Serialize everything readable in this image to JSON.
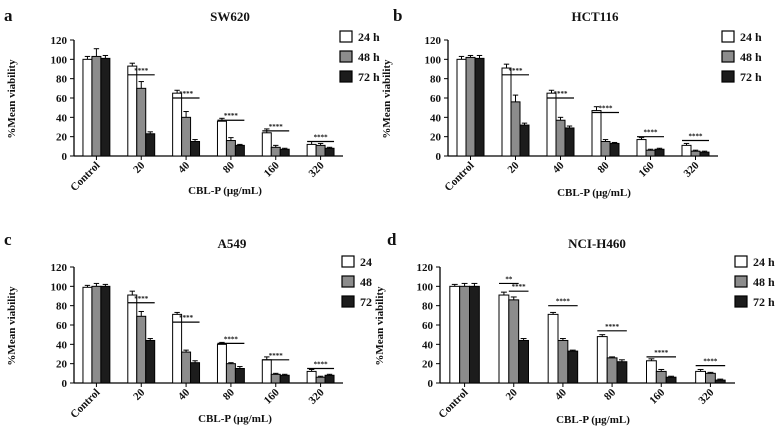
{
  "figure": {
    "style": {
      "bar_colors": [
        "#ffffff",
        "#8c8c8c",
        "#1c1c1c"
      ],
      "stroke": "#000000"
    }
  },
  "chart_data": [
    {
      "panel": "a",
      "type": "bar",
      "title": "SW620",
      "xlabel": "CBL-P (μg/mL)",
      "ylabel": "%Mean viability",
      "ylim": [
        0,
        120
      ],
      "yticks": [
        0,
        20,
        40,
        60,
        80,
        100,
        120
      ],
      "categories": [
        "Control",
        "20",
        "40",
        "80",
        "160",
        "320"
      ],
      "series": [
        {
          "name": "24 h",
          "values": [
            100,
            93,
            65,
            36,
            24,
            12
          ],
          "errors": [
            3,
            3,
            3,
            3,
            4,
            3
          ]
        },
        {
          "name": "48 h",
          "values": [
            103,
            70,
            40,
            16,
            9,
            11
          ],
          "errors": [
            8,
            7,
            6,
            3,
            2,
            2
          ]
        },
        {
          "name": "72 h",
          "values": [
            101,
            23,
            15,
            11,
            7,
            8
          ],
          "errors": [
            3,
            2,
            2,
            1,
            1,
            1
          ]
        }
      ],
      "significance": [
        {
          "category": "20",
          "label": "****",
          "y": 84
        },
        {
          "category": "40",
          "label": "****",
          "y": 60
        },
        {
          "category": "80",
          "label": "****",
          "y": 37
        },
        {
          "category": "160",
          "label": "****",
          "y": 26
        },
        {
          "category": "320",
          "label": "****",
          "y": 15
        }
      ]
    },
    {
      "panel": "b",
      "type": "bar",
      "title": "HCT116",
      "xlabel": "CBL-P (μg/mL)",
      "ylabel": "%Mean viability",
      "ylim": [
        0,
        120
      ],
      "yticks": [
        0,
        20,
        40,
        60,
        80,
        100,
        120
      ],
      "categories": [
        "Control",
        "20",
        "40",
        "80",
        "160",
        "320"
      ],
      "series": [
        {
          "name": "24 h",
          "values": [
            100,
            91,
            65,
            47,
            17,
            11
          ],
          "errors": [
            3,
            4,
            3,
            4,
            2,
            2
          ]
        },
        {
          "name": "48 h",
          "values": [
            102,
            56,
            37,
            15,
            6,
            5
          ],
          "errors": [
            2,
            7,
            3,
            2,
            1,
            1
          ]
        },
        {
          "name": "72 h",
          "values": [
            101,
            32,
            29,
            13,
            7,
            4
          ],
          "errors": [
            3,
            2,
            2,
            1,
            1,
            1
          ]
        }
      ],
      "significance": [
        {
          "category": "20",
          "label": "****",
          "y": 84
        },
        {
          "category": "40",
          "label": "****",
          "y": 60
        },
        {
          "category": "80",
          "label": "****",
          "y": 45
        },
        {
          "category": "160",
          "label": "****",
          "y": 20
        },
        {
          "category": "320",
          "label": "****",
          "y": 16
        }
      ]
    },
    {
      "panel": "c",
      "type": "bar",
      "title": "A549",
      "xlabel": "CBL-P (μg/mL)",
      "ylabel": "%Mean viability",
      "ylim": [
        0,
        120
      ],
      "yticks": [
        0,
        20,
        40,
        60,
        80,
        100,
        120
      ],
      "categories": [
        "Control",
        "20",
        "40",
        "80",
        "160",
        "320"
      ],
      "series": [
        {
          "name": "24",
          "values": [
            99,
            91,
            71,
            40,
            24,
            12
          ],
          "errors": [
            2,
            4,
            2,
            2,
            3,
            2
          ]
        },
        {
          "name": "48",
          "values": [
            100,
            69,
            32,
            20,
            9,
            6
          ],
          "errors": [
            3,
            5,
            2,
            1,
            1,
            1
          ]
        },
        {
          "name": "72",
          "values": [
            100,
            44,
            21,
            15,
            8,
            8
          ],
          "errors": [
            2,
            2,
            2,
            2,
            1,
            1
          ]
        }
      ],
      "significance": [
        {
          "category": "20",
          "label": "****",
          "y": 83
        },
        {
          "category": "40",
          "label": "****",
          "y": 63
        },
        {
          "category": "80",
          "label": "****",
          "y": 41
        },
        {
          "category": "160",
          "label": "****",
          "y": 24
        },
        {
          "category": "320",
          "label": "****",
          "y": 15
        }
      ]
    },
    {
      "panel": "d",
      "type": "bar",
      "title": "NCI-H460",
      "xlabel": "CBL-P (μg/mL)",
      "ylabel": "%Mean viability",
      "ylim": [
        0,
        120
      ],
      "yticks": [
        0,
        20,
        40,
        60,
        80,
        100,
        120
      ],
      "categories": [
        "Control",
        "20",
        "40",
        "80",
        "160",
        "320"
      ],
      "series": [
        {
          "name": "24 h",
          "values": [
            100,
            91,
            71,
            48,
            23,
            12
          ],
          "errors": [
            2,
            3,
            2,
            2,
            2,
            2
          ]
        },
        {
          "name": "48 h",
          "values": [
            100,
            86,
            44,
            26,
            12,
            10
          ],
          "errors": [
            3,
            3,
            2,
            1,
            2,
            1
          ]
        },
        {
          "name": "72 h",
          "values": [
            100,
            44,
            33,
            22,
            6,
            3
          ],
          "errors": [
            3,
            2,
            1,
            2,
            1,
            1
          ]
        }
      ],
      "significance": [
        {
          "category": "20",
          "label": "**",
          "y": 103,
          "bars": [
            0,
            1
          ]
        },
        {
          "category": "20",
          "label": "****",
          "y": 95,
          "bars": [
            1,
            2
          ]
        },
        {
          "category": "40",
          "label": "****",
          "y": 80
        },
        {
          "category": "80",
          "label": "****",
          "y": 54
        },
        {
          "category": "160",
          "label": "****",
          "y": 27
        },
        {
          "category": "320",
          "label": "****",
          "y": 18
        }
      ]
    }
  ]
}
